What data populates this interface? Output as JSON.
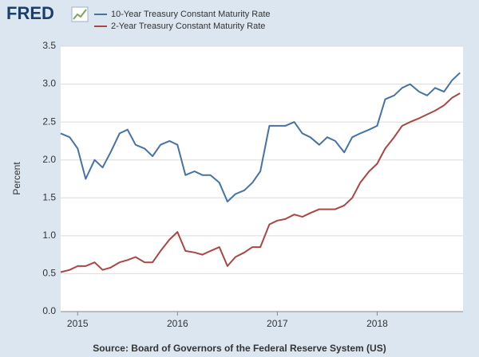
{
  "logo": "FRED",
  "source": "Source: Board of Governors of the Federal Reserve System (US)",
  "chart_data": {
    "type": "line",
    "ylabel": "Percent",
    "x": [
      2014.83,
      2014.92,
      2015.0,
      2015.08,
      2015.17,
      2015.25,
      2015.33,
      2015.42,
      2015.5,
      2015.58,
      2015.67,
      2015.75,
      2015.83,
      2015.92,
      2016.0,
      2016.08,
      2016.17,
      2016.25,
      2016.33,
      2016.42,
      2016.5,
      2016.58,
      2016.67,
      2016.75,
      2016.83,
      2016.92,
      2017.0,
      2017.08,
      2017.17,
      2017.25,
      2017.33,
      2017.42,
      2017.5,
      2017.58,
      2017.67,
      2017.75,
      2017.83,
      2017.92,
      2018.0,
      2018.08,
      2018.17,
      2018.25,
      2018.33,
      2018.42,
      2018.5,
      2018.58,
      2018.67,
      2018.75,
      2018.83
    ],
    "series": [
      {
        "name": "10-Year Treasury Constant Maturity Rate",
        "color": "#4572a7",
        "values": [
          2.35,
          2.3,
          2.15,
          1.75,
          2.0,
          1.9,
          2.1,
          2.35,
          2.4,
          2.2,
          2.15,
          2.05,
          2.2,
          2.25,
          2.2,
          1.8,
          1.85,
          1.8,
          1.8,
          1.7,
          1.45,
          1.55,
          1.6,
          1.7,
          1.85,
          2.45,
          2.45,
          2.45,
          2.5,
          2.35,
          2.3,
          2.2,
          2.3,
          2.25,
          2.1,
          2.3,
          2.35,
          2.4,
          2.45,
          2.8,
          2.85,
          2.95,
          3.0,
          2.9,
          2.85,
          2.95,
          2.9,
          3.05,
          3.15
        ]
      },
      {
        "name": "2-Year Treasury Constant Maturity Rate",
        "color": "#aa4643",
        "values": [
          0.52,
          0.55,
          0.6,
          0.6,
          0.65,
          0.55,
          0.58,
          0.65,
          0.68,
          0.72,
          0.65,
          0.65,
          0.8,
          0.95,
          1.05,
          0.8,
          0.78,
          0.75,
          0.8,
          0.85,
          0.6,
          0.72,
          0.78,
          0.85,
          0.85,
          1.15,
          1.2,
          1.22,
          1.28,
          1.25,
          1.3,
          1.35,
          1.35,
          1.35,
          1.4,
          1.5,
          1.7,
          1.85,
          1.95,
          2.15,
          2.3,
          2.45,
          2.5,
          2.55,
          2.6,
          2.65,
          2.72,
          2.82,
          2.88
        ]
      }
    ],
    "xlim": [
      2014.83,
      2018.86
    ],
    "xticks": [
      2015,
      2016,
      2017,
      2018
    ],
    "ylim": [
      0,
      3.5
    ],
    "yticks": [
      {
        "value": 0,
        "label": "0.0"
      },
      {
        "value": 0.5,
        "label": "0.5"
      },
      {
        "value": 1,
        "label": "1.0"
      },
      {
        "value": 1.5,
        "label": "1.5"
      },
      {
        "value": 2,
        "label": "2.0"
      },
      {
        "value": 2.5,
        "label": "2.5"
      },
      {
        "value": 3,
        "label": "3.0"
      },
      {
        "value": 3.5,
        "label": "3.5"
      }
    ],
    "grid": true
  }
}
